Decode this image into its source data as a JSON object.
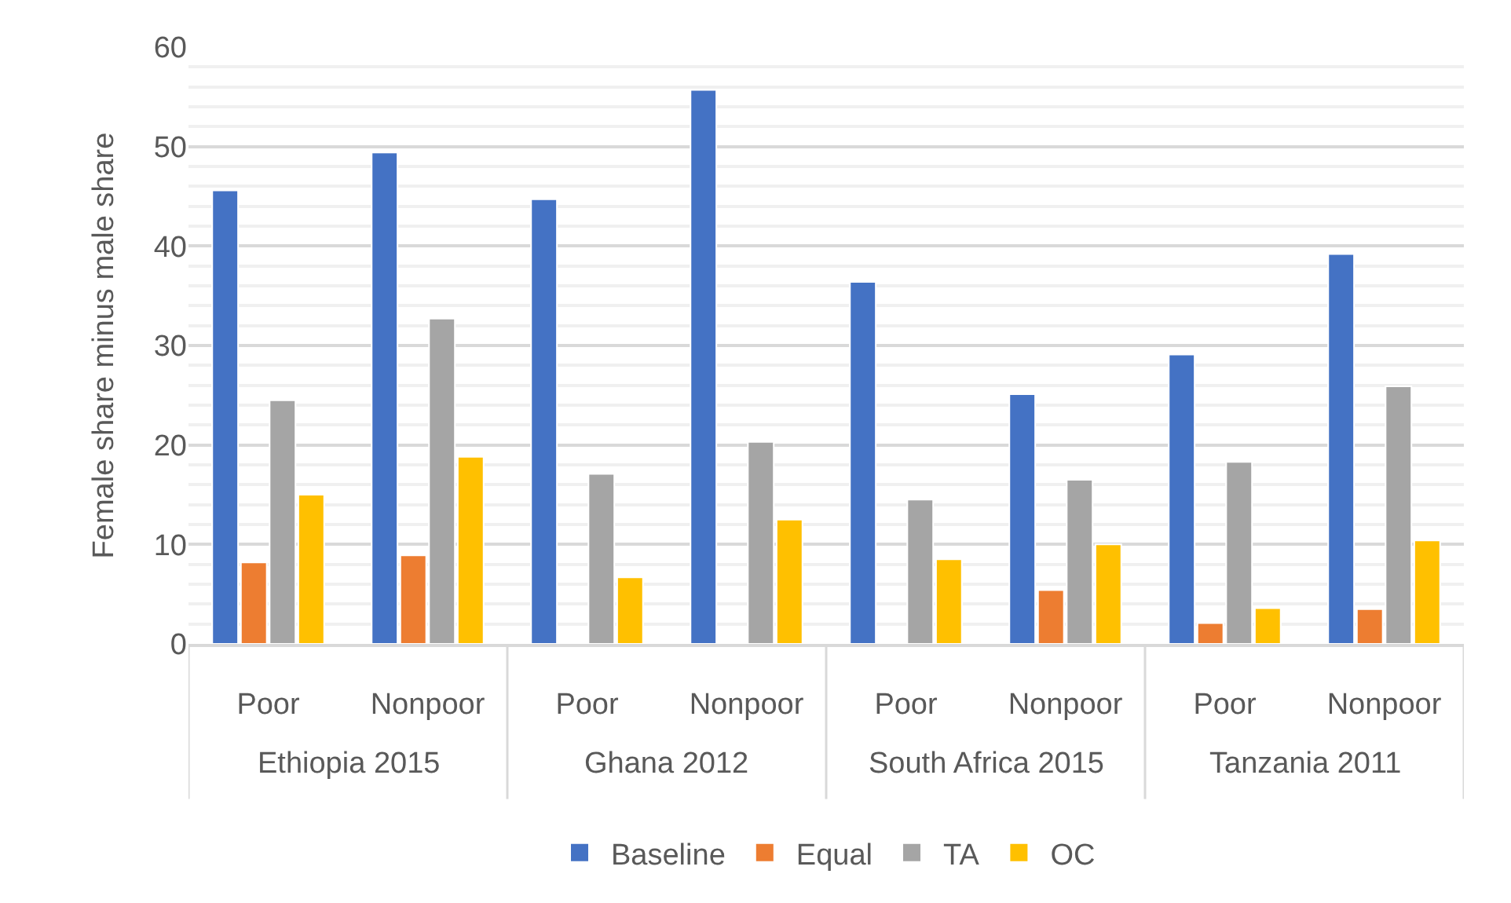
{
  "chart_data": {
    "type": "bar",
    "ylabel": "Female share minus male share",
    "categories": [
      "Poor",
      "Nonpoor",
      "Poor",
      "Nonpoor",
      "Poor",
      "Nonpoor",
      "Poor",
      "Nonpoor"
    ],
    "annotations": [
      "Ethiopia 2015",
      "Ghana 2012",
      "South Africa 2015",
      "Tanzania 2011"
    ],
    "series": [
      {
        "name": "Baseline",
        "color": "#4472c4",
        "values": [
          45.6,
          49.4,
          44.7,
          55.7,
          36.4,
          25.1,
          29.1,
          39.2
        ]
      },
      {
        "name": "Equal",
        "color": "#ed7d31",
        "values": [
          8.2,
          8.9,
          null,
          null,
          null,
          5.4,
          2.1,
          3.5
        ]
      },
      {
        "name": "TA",
        "color": "#a5a5a5",
        "values": [
          24.5,
          32.7,
          17.1,
          20.3,
          14.5,
          16.5,
          18.3,
          25.9
        ]
      },
      {
        "name": "OC",
        "color": "#ffc000",
        "values": [
          15.0,
          18.8,
          6.7,
          12.5,
          8.5,
          10.0,
          3.6,
          10.4
        ]
      }
    ],
    "ylim": [
      0,
      60
    ],
    "yticks": [
      0,
      10,
      20,
      30,
      40,
      50,
      60
    ],
    "grid": "y",
    "legend": "bottom"
  }
}
